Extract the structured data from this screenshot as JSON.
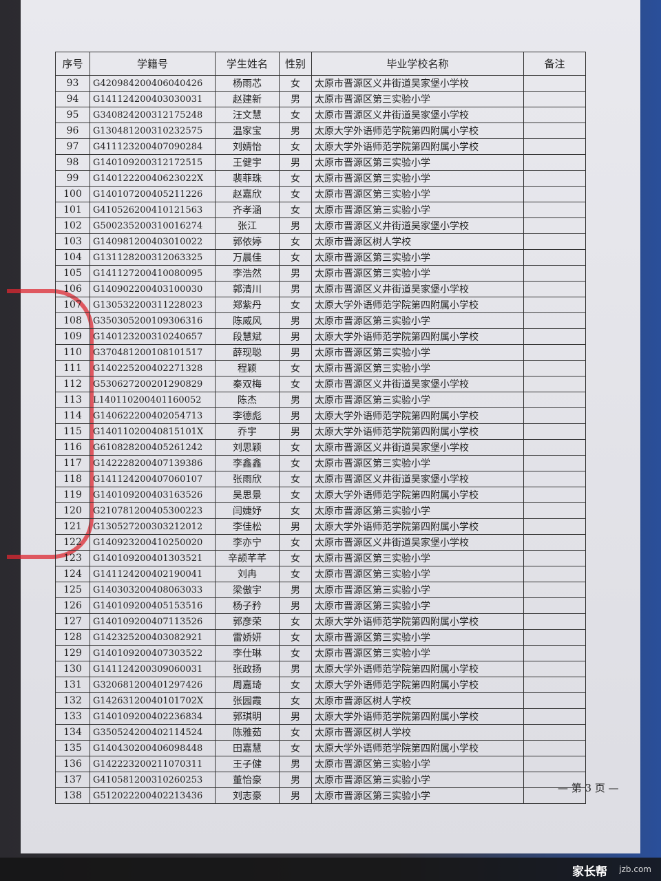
{
  "table": {
    "headers": [
      "序号",
      "学籍号",
      "学生姓名",
      "性别",
      "毕业学校名称",
      "备注"
    ],
    "rows": [
      [
        "93",
        "G420984200406040426",
        "杨雨芯",
        "女",
        "太原市晋源区义井街道吴家堡小学校"
      ],
      [
        "94",
        "G141124200403030031",
        "赵建新",
        "男",
        "太原市晋源区第三实验小学"
      ],
      [
        "95",
        "G340824200312175248",
        "汪文慧",
        "女",
        "太原市晋源区义井街道吴家堡小学校"
      ],
      [
        "96",
        "G130481200310232575",
        "温家宝",
        "男",
        "太原大学外语师范学院第四附属小学校"
      ],
      [
        "97",
        "G411123200407090284",
        "刘婧怡",
        "女",
        "太原大学外语师范学院第四附属小学校"
      ],
      [
        "98",
        "G140109200312172515",
        "王健宇",
        "男",
        "太原市晋源区第三实验小学"
      ],
      [
        "99",
        "G14012220040623022X",
        "裴菲珠",
        "女",
        "太原市晋源区第三实验小学"
      ],
      [
        "100",
        "G140107200405211226",
        "赵嘉欣",
        "女",
        "太原市晋源区第三实验小学"
      ],
      [
        "101",
        "G410526200410121563",
        "齐孝涵",
        "女",
        "太原市晋源区第三实验小学"
      ],
      [
        "102",
        "G500235200310016274",
        "张江",
        "男",
        "太原市晋源区义井街道吴家堡小学校"
      ],
      [
        "103",
        "G140981200403010022",
        "郭依婷",
        "女",
        "太原市晋源区树人学校"
      ],
      [
        "104",
        "G131128200312063325",
        "万晨佳",
        "女",
        "太原市晋源区第三实验小学"
      ],
      [
        "105",
        "G141127200410080095",
        "李浩然",
        "男",
        "太原市晋源区第三实验小学"
      ],
      [
        "106",
        "G140902200403100030",
        "郭清川",
        "男",
        "太原市晋源区义井街道吴家堡小学校"
      ],
      [
        "107",
        "G130532200311228023",
        "郑紫丹",
        "女",
        "太原大学外语师范学院第四附属小学校"
      ],
      [
        "108",
        "G350305200109306316",
        "陈威风",
        "男",
        "太原市晋源区第三实验小学"
      ],
      [
        "109",
        "G140123200310240657",
        "段慧斌",
        "男",
        "太原大学外语师范学院第四附属小学校"
      ],
      [
        "110",
        "G370481200108101517",
        "薛现聪",
        "男",
        "太原市晋源区第三实验小学"
      ],
      [
        "111",
        "G140225200402271328",
        "程颖",
        "女",
        "太原市晋源区第三实验小学"
      ],
      [
        "112",
        "G530627200201290829",
        "秦双梅",
        "女",
        "太原市晋源区义井街道吴家堡小学校"
      ],
      [
        "113",
        "L140110200401160052",
        "陈杰",
        "男",
        "太原市晋源区第三实验小学"
      ],
      [
        "114",
        "G140622200402054713",
        "李德彪",
        "男",
        "太原大学外语师范学院第四附属小学校"
      ],
      [
        "115",
        "G14011020040815101X",
        "乔宇",
        "男",
        "太原大学外语师范学院第四附属小学校"
      ],
      [
        "116",
        "G610828200405261242",
        "刘思颖",
        "女",
        "太原市晋源区义井街道吴家堡小学校"
      ],
      [
        "117",
        "G142228200407139386",
        "李鑫鑫",
        "女",
        "太原市晋源区第三实验小学"
      ],
      [
        "118",
        "G141124200407060107",
        "张雨欣",
        "女",
        "太原市晋源区义井街道吴家堡小学校"
      ],
      [
        "119",
        "G140109200403163526",
        "吴思景",
        "女",
        "太原大学外语师范学院第四附属小学校"
      ],
      [
        "120",
        "G210781200405300223",
        "闫婕妤",
        "女",
        "太原市晋源区第三实验小学"
      ],
      [
        "121",
        "G130527200303212012",
        "李佳松",
        "男",
        "太原大学外语师范学院第四附属小学校"
      ],
      [
        "122",
        "G140923200410250020",
        "李亦宁",
        "女",
        "太原市晋源区义井街道吴家堡小学校"
      ],
      [
        "123",
        "G140109200401303521",
        "辛颉芊芊",
        "女",
        "太原市晋源区第三实验小学"
      ],
      [
        "124",
        "G141124200402190041",
        "刘冉",
        "女",
        "太原市晋源区第三实验小学"
      ],
      [
        "125",
        "G140303200408063033",
        "梁傲宇",
        "男",
        "太原市晋源区第三实验小学"
      ],
      [
        "126",
        "G140109200405153516",
        "杨子矜",
        "男",
        "太原市晋源区第三实验小学"
      ],
      [
        "127",
        "G140109200407113526",
        "郭彦荣",
        "女",
        "太原大学外语师范学院第四附属小学校"
      ],
      [
        "128",
        "G142325200403082921",
        "雷娇妍",
        "女",
        "太原市晋源区第三实验小学"
      ],
      [
        "129",
        "G140109200407303522",
        "李仕琳",
        "女",
        "太原市晋源区第三实验小学"
      ],
      [
        "130",
        "G141124200309060031",
        "张政扬",
        "男",
        "太原大学外语师范学院第四附属小学校"
      ],
      [
        "131",
        "G320681200401297426",
        "周嘉琦",
        "女",
        "太原大学外语师范学院第四附属小学校"
      ],
      [
        "132",
        "G14263120040101702X",
        "张园霞",
        "女",
        "太原市晋源区树人学校"
      ],
      [
        "133",
        "G140109200402236834",
        "郭琪明",
        "男",
        "太原大学外语师范学院第四附属小学校"
      ],
      [
        "134",
        "G350524200402114524",
        "陈雅茹",
        "女",
        "太原市晋源区树人学校"
      ],
      [
        "135",
        "G140430200406098448",
        "田嘉慧",
        "女",
        "太原大学外语师范学院第四附属小学校"
      ],
      [
        "136",
        "G142223200211070311",
        "王子健",
        "男",
        "太原市晋源区第三实验小学"
      ],
      [
        "137",
        "G410581200310260253",
        "董怡豪",
        "男",
        "太原市晋源区第三实验小学"
      ],
      [
        "138",
        "G512022200402213436",
        "刘志豪",
        "男",
        "太原市晋源区第三实验小学"
      ]
    ]
  },
  "footer": {
    "page": "— 第 3 页 —"
  },
  "watermark": {
    "brand": "家长帮",
    "site": "jzb.com"
  }
}
